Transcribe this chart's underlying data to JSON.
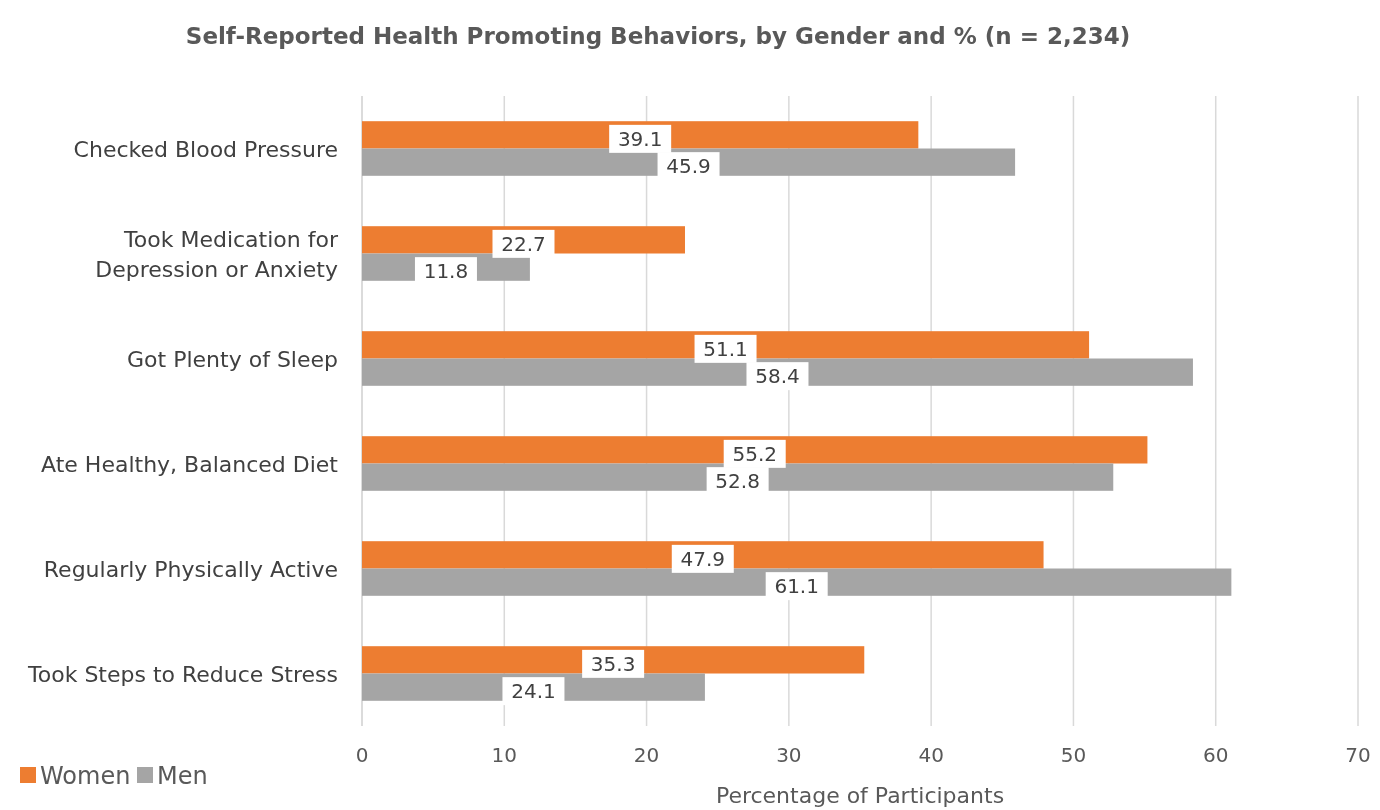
{
  "chart_data": {
    "type": "bar",
    "orientation": "horizontal",
    "title": "Self-Reported Health Promoting Behaviors, by Gender and % (n = 2,234)",
    "xlabel": "Percentage of Participants",
    "categories": [
      "Checked Blood Pressure",
      "Took Medication for Depression or Anxiety",
      "Got Plenty of Sleep",
      "Ate Healthy, Balanced Diet",
      "Regularly Physically Active",
      "Took Steps to Reduce Stress"
    ],
    "series": [
      {
        "name": "Women",
        "color": "#ed7d31",
        "values": [
          39.1,
          22.7,
          51.1,
          55.2,
          47.9,
          35.3
        ]
      },
      {
        "name": "Men",
        "color": "#a5a5a5",
        "values": [
          45.9,
          11.8,
          58.4,
          52.8,
          61.1,
          24.1
        ]
      }
    ],
    "xlim": [
      0,
      70
    ],
    "xticks": [
      0,
      10,
      20,
      30,
      40,
      50,
      60,
      70
    ],
    "grid": "x",
    "legend": "bottom left",
    "data_labels": true
  }
}
